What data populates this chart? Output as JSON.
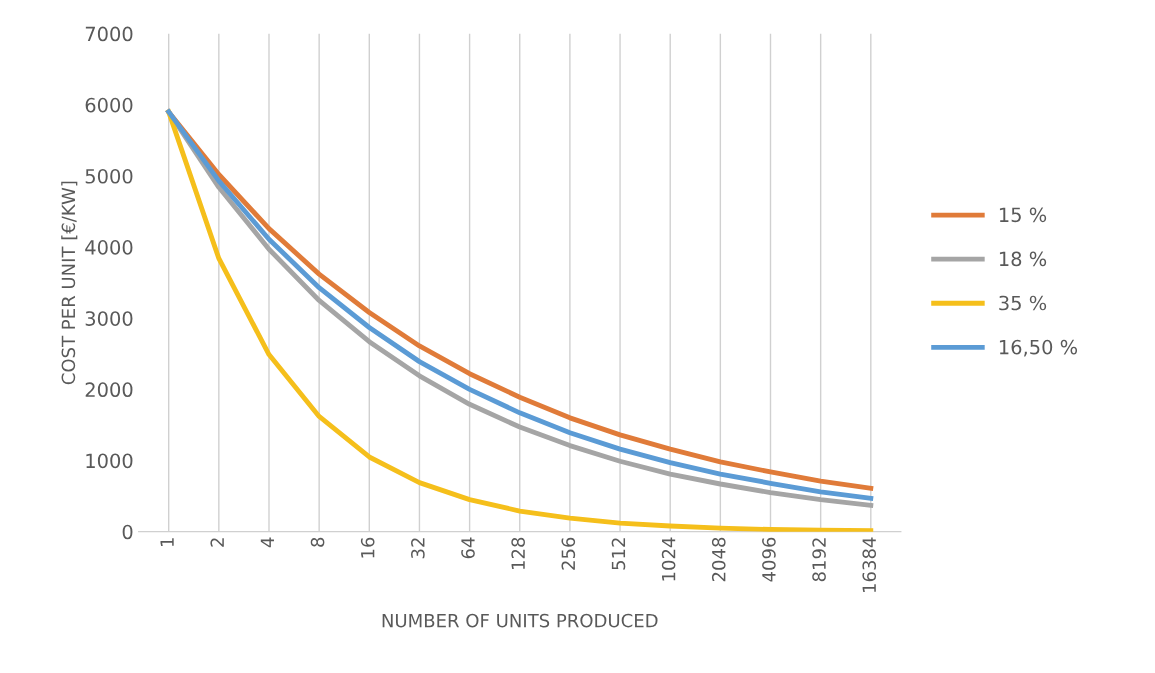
{
  "chart_data": {
    "type": "line",
    "xlabel": "NUMBER OF UNITS PRODUCED",
    "ylabel": "COST PER UNIT [€/KW]",
    "categories": [
      "1",
      "2",
      "4",
      "8",
      "16",
      "32",
      "64",
      "128",
      "256",
      "512",
      "1024",
      "2048",
      "4096",
      "8192",
      "16384"
    ],
    "series": [
      {
        "name": "15 %",
        "color": "#e07b39",
        "values": [
          5900,
          5020,
          4260,
          3620,
          3080,
          2610,
          2220,
          1890,
          1600,
          1360,
          1160,
          980,
          840,
          710,
          610
        ]
      },
      {
        "name": "18 %",
        "color": "#a5a5a5",
        "values": [
          5900,
          4840,
          3970,
          3250,
          2670,
          2190,
          1790,
          1470,
          1210,
          990,
          810,
          670,
          550,
          450,
          370
        ]
      },
      {
        "name": "35 %",
        "color": "#f5bf1b",
        "values": [
          5900,
          3840,
          2490,
          1620,
          1050,
          690,
          450,
          290,
          190,
          120,
          80,
          50,
          30,
          20,
          15
        ]
      },
      {
        "name": "16,50 %",
        "color": "#5b9bd5",
        "values": [
          5900,
          4930,
          4110,
          3430,
          2870,
          2390,
          2000,
          1670,
          1390,
          1160,
          970,
          810,
          680,
          560,
          470
        ]
      }
    ],
    "ylim": [
      0,
      7000
    ],
    "yticks": [
      0,
      1000,
      2000,
      3000,
      4000,
      5000,
      6000,
      7000
    ],
    "grid": "x",
    "legend": "right",
    "marker": "none",
    "line_style": "solid"
  }
}
